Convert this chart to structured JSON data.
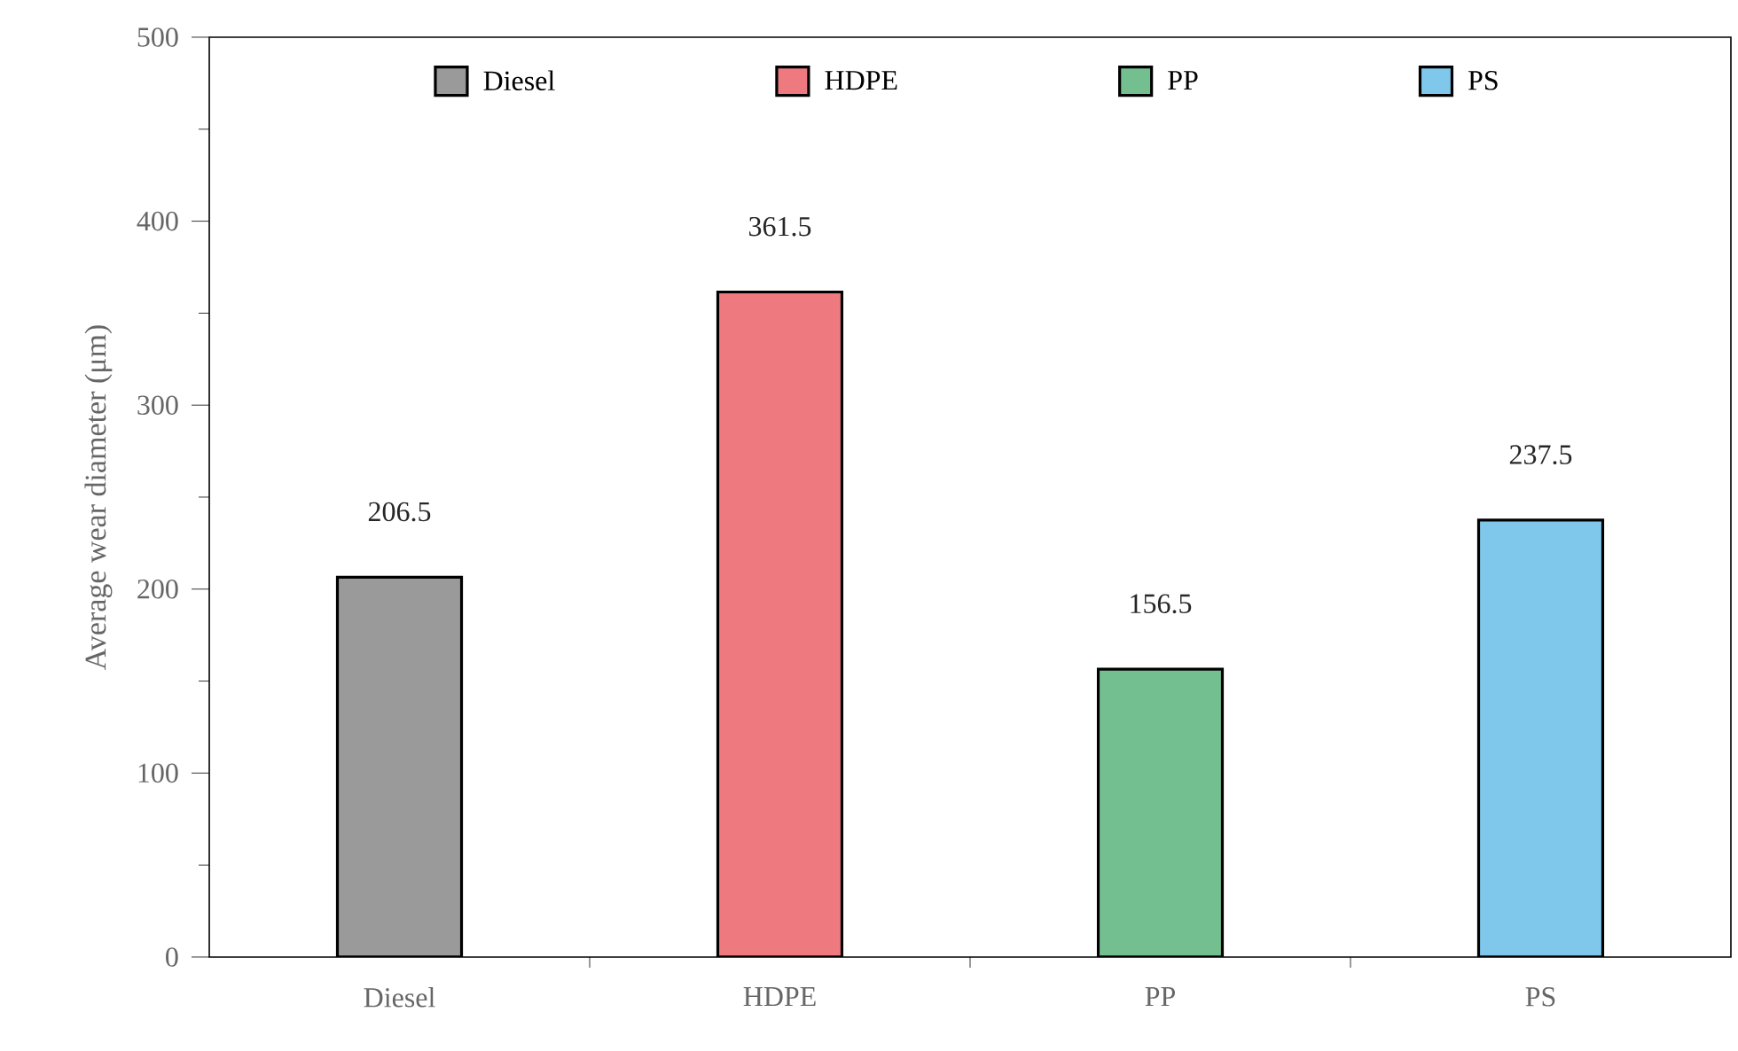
{
  "chart_data": {
    "type": "bar",
    "ylabel": "Average wear diameter (μm)",
    "categories": [
      "Diesel",
      "HDPE",
      "PP",
      "PS"
    ],
    "series": [
      {
        "name": "Diesel",
        "color": "#9a9a9a",
        "values": [
          206.5,
          null,
          null,
          null
        ]
      },
      {
        "name": "HDPE",
        "color": "#ee7a80",
        "values": [
          null,
          361.5,
          null,
          null
        ]
      },
      {
        "name": "PP",
        "color": "#74bf90",
        "values": [
          null,
          null,
          156.5,
          null
        ]
      },
      {
        "name": "PS",
        "color": "#7fc8ec",
        "values": [
          null,
          null,
          null,
          237.5
        ]
      }
    ],
    "ylim": [
      0,
      500
    ],
    "yticks": [
      0,
      100,
      200,
      300,
      400,
      500
    ],
    "data_labels": true,
    "legend": "top",
    "grid": false
  }
}
